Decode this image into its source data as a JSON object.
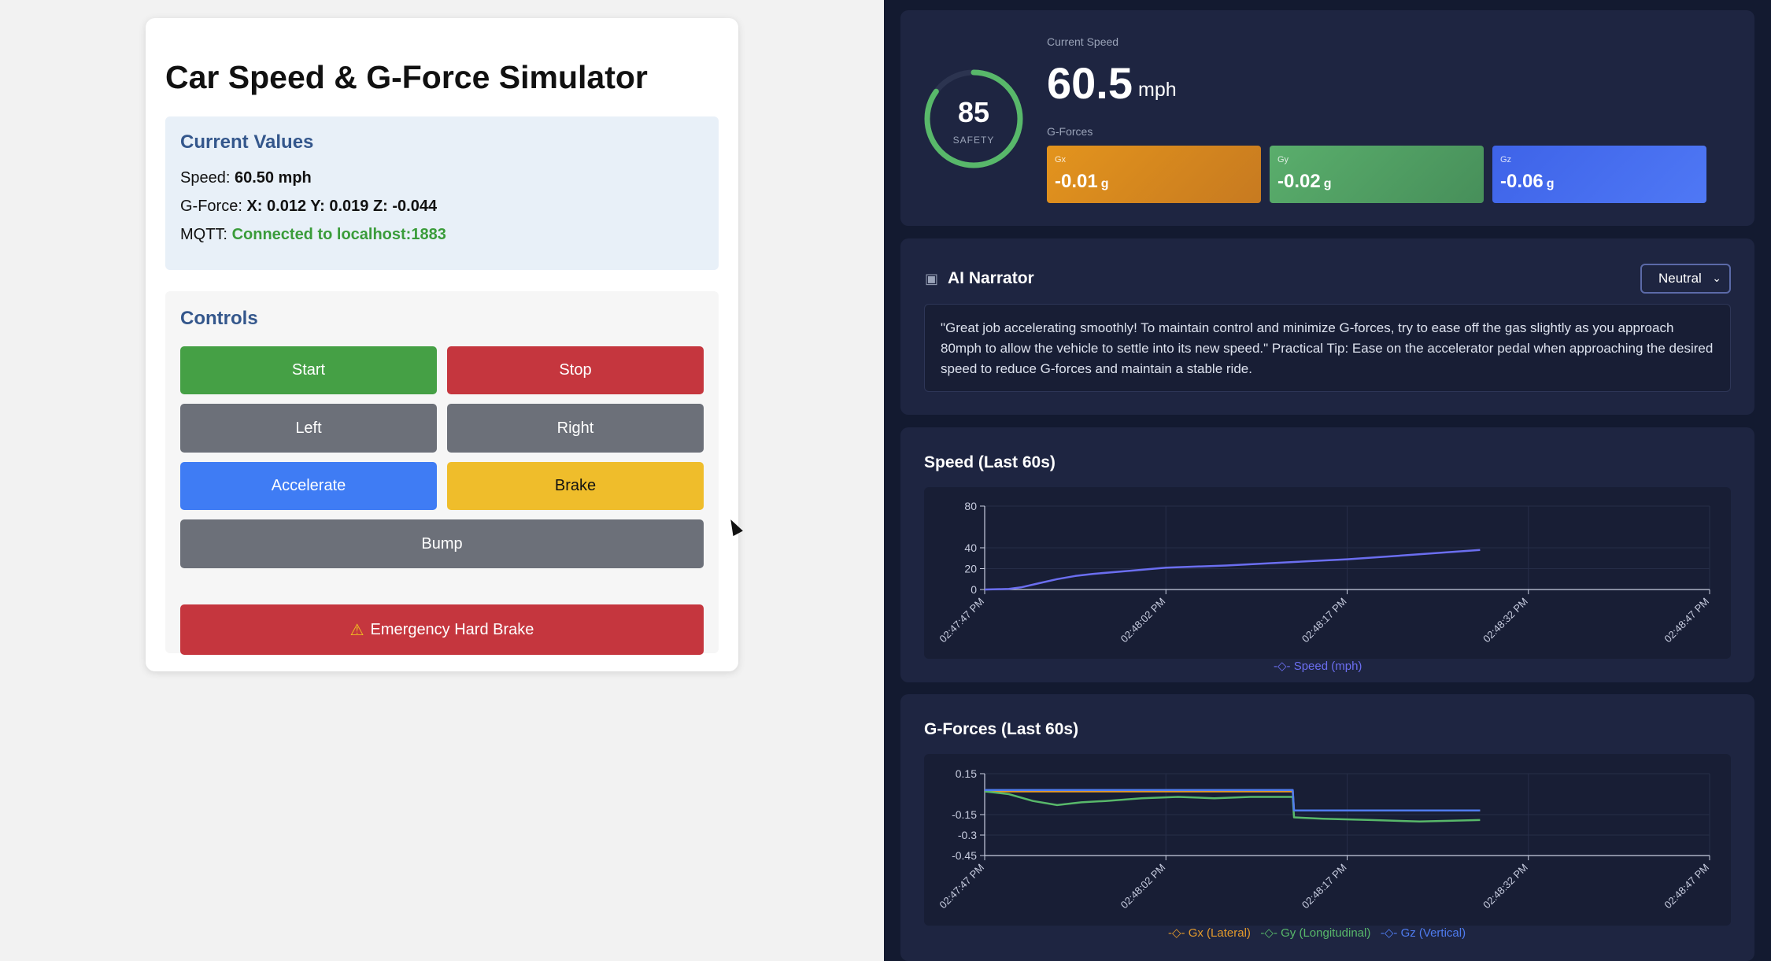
{
  "simulator": {
    "title": "Car Speed & G-Force Simulator",
    "current_values": {
      "heading": "Current Values",
      "speed_label": "Speed:",
      "speed_value": "60.50 mph",
      "gforce_label": "G-Force:",
      "gforce_value": "X: 0.012 Y: 0.019 Z: -0.044",
      "mqtt_label": "MQTT:",
      "mqtt_status": "Connected to localhost:1883"
    },
    "controls": {
      "heading": "Controls",
      "start": "Start",
      "stop": "Stop",
      "left": "Left",
      "right": "Right",
      "accelerate": "Accelerate",
      "brake": "Brake",
      "bump": "Bump",
      "emergency": "Emergency Hard Brake"
    }
  },
  "dashboard": {
    "safety": {
      "score": "85",
      "label": "SAFETY",
      "fraction": 0.85
    },
    "speed": {
      "label": "Current Speed",
      "value": "60.5",
      "unit": "mph"
    },
    "gforces": {
      "label": "G-Forces",
      "cards": [
        {
          "label": "Gx",
          "value": "-0.01",
          "unit": "g"
        },
        {
          "label": "Gy",
          "value": "-0.02",
          "unit": "g"
        },
        {
          "label": "Gz",
          "value": "-0.06",
          "unit": "g"
        }
      ]
    },
    "narrator": {
      "title": "AI Narrator",
      "tone": "Neutral",
      "text": "\"Great job accelerating smoothly! To maintain control and minimize G-forces, try to ease off the gas slightly as you approach 80mph to allow the vehicle to settle into its new speed.\" Practical Tip: Ease on the accelerator pedal when approaching the desired speed to reduce G-forces and maintain a stable ride."
    }
  },
  "colors": {
    "speed": "#6b6ef0",
    "gx": "#e39a2c",
    "gy": "#58b86a",
    "gz": "#4f7cf0"
  },
  "chart_data": [
    {
      "type": "line",
      "title": "Speed (Last 60s)",
      "xlabel": "",
      "ylabel": "",
      "ylim": [
        0,
        80
      ],
      "yticks": [
        0,
        20,
        40,
        80
      ],
      "xticks": [
        "02:47:47 PM",
        "02:48:02 PM",
        "02:48:17 PM",
        "02:48:32 PM",
        "02:48:47 PM"
      ],
      "xlim_seconds": [
        0,
        60
      ],
      "series": [
        {
          "name": "Speed (mph)",
          "x": [
            0,
            2,
            3,
            4.5,
            6,
            7.5,
            9,
            12,
            15,
            20,
            25,
            30,
            35,
            41
          ],
          "values": [
            0,
            0.5,
            2,
            6,
            10,
            13,
            15,
            18,
            21,
            23,
            26,
            29,
            33,
            38
          ]
        }
      ],
      "legend": "bottom",
      "grid": true
    },
    {
      "type": "line",
      "title": "G-Forces (Last 60s)",
      "xlabel": "",
      "ylabel": "",
      "ylim": [
        -0.45,
        0.15
      ],
      "yticks": [
        0.15,
        -0.15,
        -0.3,
        -0.45
      ],
      "xticks": [
        "02:47:47 PM",
        "02:48:02 PM",
        "02:48:17 PM",
        "02:48:32 PM",
        "02:48:47 PM"
      ],
      "xlim_seconds": [
        0,
        60
      ],
      "series": [
        {
          "name": "Gx (Lateral)",
          "x": [
            0,
            10,
            20,
            25.5,
            25.6,
            30,
            41
          ],
          "values": [
            0.02,
            0.02,
            0.02,
            0.02,
            -0.12,
            -0.12,
            -0.12
          ]
        },
        {
          "name": "Gy (Longitudinal)",
          "x": [
            0,
            2,
            4,
            6,
            8,
            10,
            13,
            16,
            19,
            22,
            25.5,
            25.6,
            28,
            32,
            36,
            41
          ],
          "values": [
            0.02,
            0.0,
            -0.05,
            -0.08,
            -0.06,
            -0.05,
            -0.03,
            -0.02,
            -0.03,
            -0.02,
            -0.02,
            -0.17,
            -0.18,
            -0.19,
            -0.2,
            -0.19
          ]
        },
        {
          "name": "Gz (Vertical)",
          "x": [
            0,
            10,
            20,
            25.5,
            25.6,
            30,
            41
          ],
          "values": [
            0.03,
            0.03,
            0.03,
            0.03,
            -0.12,
            -0.12,
            -0.12
          ]
        }
      ],
      "legend": "bottom",
      "grid": true
    }
  ]
}
